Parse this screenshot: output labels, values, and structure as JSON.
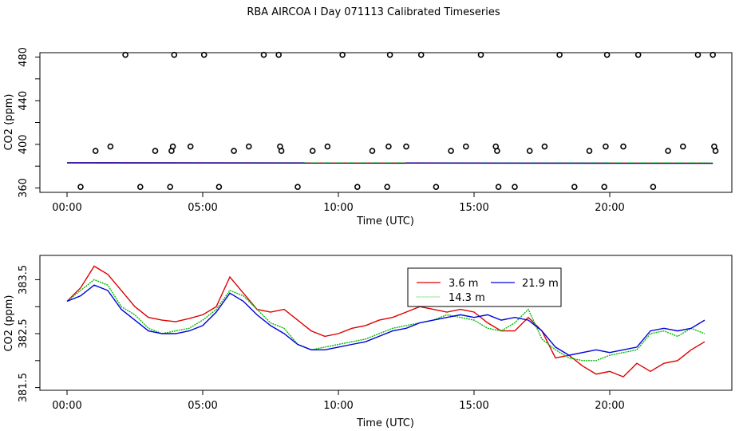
{
  "title": "RBA AIRCOA I  Day 071113  Calibrated Timeseries",
  "chart_data": [
    {
      "type": "scatter",
      "xlabel": "Time (UTC)",
      "ylabel": "CO2 (ppm)",
      "xlim": [
        -1.0,
        24.5
      ],
      "ylim": [
        356,
        484
      ],
      "xticks": [
        0,
        5,
        10,
        15,
        20
      ],
      "xtick_labels": [
        "00:00",
        "05:00",
        "10:00",
        "15:00",
        "20:00"
      ],
      "yticks": [
        360,
        380,
        400,
        420,
        440,
        460,
        480
      ],
      "ytick_labels": [
        "360",
        "",
        "400",
        "",
        "440",
        "",
        "480"
      ],
      "points": {
        "x": [
          0.5,
          1.05,
          1.6,
          2.15,
          2.7,
          3.25,
          3.8,
          3.85,
          3.9,
          3.95,
          4.55,
          5.05,
          5.6,
          6.15,
          6.7,
          7.25,
          7.8,
          7.85,
          7.9,
          8.5,
          9.05,
          9.6,
          10.15,
          10.7,
          11.25,
          11.8,
          11.85,
          11.9,
          12.5,
          13.05,
          13.6,
          14.15,
          14.7,
          15.25,
          15.8,
          15.85,
          15.9,
          16.5,
          17.05,
          17.6,
          18.15,
          18.7,
          19.25,
          19.8,
          19.85,
          19.9,
          20.5,
          21.05,
          21.6,
          22.15,
          22.7,
          23.25,
          23.8,
          23.85,
          23.9
        ],
        "y": [
          361,
          394,
          398,
          482,
          361,
          394,
          361,
          394,
          398,
          482,
          398,
          482,
          361,
          394,
          398,
          482,
          482,
          398,
          394,
          361,
          394,
          398,
          482,
          361,
          394,
          361,
          398,
          482,
          398,
          482,
          361,
          394,
          398,
          482,
          398,
          394,
          361,
          361,
          394,
          398,
          482,
          361,
          394,
          361,
          398,
          482,
          398,
          482,
          361,
          394,
          398,
          482,
          482,
          398,
          394
        ]
      },
      "series": [
        {
          "name": "3.6 m",
          "color": "#dd0000",
          "x": [
            0,
            23.8
          ],
          "values": [
            383.2,
            382.8
          ]
        },
        {
          "name": "14.3 m",
          "color": "#00bb00",
          "x": [
            0,
            23.8
          ],
          "values": [
            383.0,
            382.9
          ]
        },
        {
          "name": "21.9 m",
          "color": "#0000dd",
          "x": [
            0,
            23.8
          ],
          "values": [
            383.0,
            382.6
          ]
        }
      ]
    },
    {
      "type": "line",
      "xlabel": "Time (UTC)",
      "ylabel": "CO2 (ppm)",
      "xlim": [
        -1.0,
        24.5
      ],
      "ylim": [
        381.45,
        383.95
      ],
      "xticks": [
        0,
        5,
        10,
        15,
        20
      ],
      "xtick_labels": [
        "00:00",
        "05:00",
        "10:00",
        "15:00",
        "20:00"
      ],
      "yticks": [
        381.5,
        382.0,
        382.5,
        383.0,
        383.5
      ],
      "ytick_labels": [
        "381.5",
        "",
        "382.5",
        "",
        "383.5"
      ],
      "legend": {
        "position": "top-center",
        "entries": [
          "3.6 m",
          "21.9 m",
          "14.3 m"
        ]
      },
      "x": [
        0,
        0.5,
        1,
        1.5,
        2,
        2.5,
        3,
        3.5,
        4,
        4.5,
        5,
        5.5,
        6,
        6.5,
        7,
        7.5,
        8,
        8.5,
        9,
        9.5,
        10,
        10.5,
        11,
        11.5,
        12,
        12.5,
        13,
        13.5,
        14,
        14.5,
        15,
        15.5,
        16,
        16.5,
        17,
        17.5,
        18,
        18.5,
        19,
        19.5,
        20,
        20.5,
        21,
        21.5,
        22,
        22.5,
        23,
        23.5
      ],
      "series": [
        {
          "name": "3.6 m",
          "color": "#dd0000",
          "values": [
            383.1,
            383.35,
            383.75,
            383.6,
            383.3,
            383.0,
            382.8,
            382.75,
            382.72,
            382.78,
            382.85,
            383.0,
            383.55,
            383.25,
            382.95,
            382.9,
            382.95,
            382.75,
            382.55,
            382.45,
            382.5,
            382.6,
            382.65,
            382.75,
            382.8,
            382.9,
            383.0,
            382.95,
            382.9,
            382.95,
            382.9,
            382.7,
            382.55,
            382.55,
            382.8,
            382.55,
            382.05,
            382.1,
            381.9,
            381.75,
            381.8,
            381.7,
            381.95,
            381.8,
            381.95,
            382.0,
            382.2,
            382.35
          ]
        },
        {
          "name": "14.3 m",
          "color": "#00bb00",
          "values": [
            383.1,
            383.3,
            383.5,
            383.4,
            383.0,
            382.85,
            382.6,
            382.5,
            382.55,
            382.6,
            382.75,
            382.95,
            383.3,
            383.2,
            382.95,
            382.7,
            382.6,
            382.3,
            382.2,
            382.25,
            382.3,
            382.35,
            382.4,
            382.5,
            382.6,
            382.65,
            382.7,
            382.75,
            382.85,
            382.8,
            382.75,
            382.6,
            382.55,
            382.7,
            382.95,
            382.4,
            382.2,
            382.05,
            382.0,
            382.0,
            382.1,
            382.15,
            382.2,
            382.5,
            382.55,
            382.45,
            382.6,
            382.5
          ]
        },
        {
          "name": "21.9 m",
          "color": "#0000dd",
          "values": [
            383.1,
            383.2,
            383.4,
            383.3,
            382.95,
            382.75,
            382.55,
            382.5,
            382.5,
            382.55,
            382.65,
            382.9,
            383.25,
            383.1,
            382.85,
            382.65,
            382.5,
            382.3,
            382.2,
            382.2,
            382.25,
            382.3,
            382.35,
            382.45,
            382.55,
            382.6,
            382.7,
            382.75,
            382.8,
            382.85,
            382.8,
            382.85,
            382.75,
            382.8,
            382.75,
            382.55,
            382.25,
            382.1,
            382.15,
            382.2,
            382.15,
            382.2,
            382.25,
            382.55,
            382.6,
            382.55,
            382.6,
            382.75
          ]
        }
      ]
    }
  ]
}
